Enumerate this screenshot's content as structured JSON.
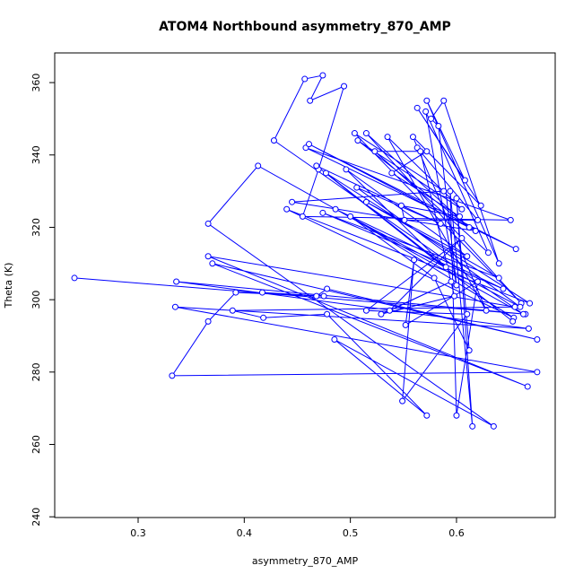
{
  "chart_data": {
    "type": "line",
    "title": "ATOM4 Northbound asymmetry_870_AMP",
    "x_label": "asymmetry_870_AMP",
    "y_label": "Theta (K)",
    "color": "#0000ff",
    "markers": "open-circle",
    "xlim": [
      0.2214,
      0.693
    ],
    "ylim": [
      239.8,
      368.2
    ],
    "xticks": [
      0.3,
      0.4,
      0.5,
      0.6
    ],
    "yticks": [
      240,
      260,
      280,
      300,
      320,
      340,
      360
    ],
    "x": [
      0.24,
      0.665,
      0.336,
      0.668,
      0.335,
      0.676,
      0.332,
      0.366,
      0.392,
      0.475,
      0.417,
      0.468,
      0.478,
      0.676,
      0.37,
      0.667,
      0.366,
      0.655,
      0.389,
      0.418,
      0.478,
      0.572,
      0.485,
      0.635,
      0.366,
      0.413,
      0.663,
      0.428,
      0.457,
      0.474,
      0.462,
      0.494,
      0.47,
      0.455,
      0.651,
      0.458,
      0.656,
      0.461,
      0.618,
      0.445,
      0.588,
      0.504,
      0.661,
      0.515,
      0.612,
      0.507,
      0.605,
      0.535,
      0.628,
      0.559,
      0.623,
      0.563,
      0.608,
      0.572,
      0.64,
      0.588,
      0.576,
      0.583,
      0.6,
      0.571,
      0.63,
      0.523,
      0.572,
      0.539,
      0.603,
      0.548,
      0.551,
      0.62,
      0.563,
      0.566,
      0.598,
      0.529,
      0.595,
      0.537,
      0.605,
      0.515,
      0.61,
      0.549,
      0.56,
      0.552,
      0.62,
      0.6,
      0.594,
      0.615,
      0.6,
      0.612,
      0.579,
      0.5,
      0.654,
      0.44,
      0.669,
      0.477,
      0.59,
      0.496,
      0.61,
      0.515,
      0.64,
      0.474,
      0.644,
      0.486,
      0.66,
      0.506,
      0.585,
      0.468,
      0.653
    ],
    "values": [
      306,
      296,
      305,
      292,
      298,
      280,
      279,
      294,
      302,
      301,
      302,
      301,
      303,
      289,
      310,
      276,
      312,
      298,
      297,
      295,
      296,
      268,
      289,
      265,
      321,
      337,
      296,
      344,
      361,
      362,
      355,
      359,
      336,
      323,
      322,
      342,
      314,
      343,
      319,
      327,
      330,
      346,
      299,
      346,
      320,
      344,
      325,
      345,
      297,
      345,
      326,
      353,
      333,
      355,
      310,
      355,
      350,
      348,
      304,
      352,
      313,
      341,
      341,
      335,
      323,
      326,
      322,
      322,
      342,
      341,
      301,
      296,
      305,
      297,
      317,
      297,
      296,
      272,
      311,
      293,
      305,
      268,
      330,
      265,
      328,
      286,
      306,
      323,
      295,
      325,
      299,
      335,
      309,
      336,
      312,
      327,
      306,
      324,
      303,
      325,
      298,
      331,
      321,
      337,
      294
    ]
  }
}
